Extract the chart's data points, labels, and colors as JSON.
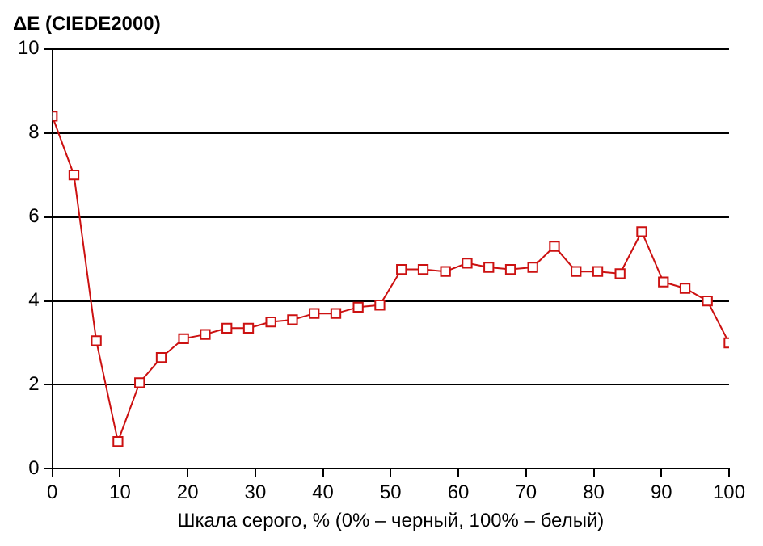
{
  "chart_data": {
    "type": "line",
    "ylabel": "ΔE (CIEDE2000)",
    "xlabel": "Шкала серого, % (0% – черный, 100% – белый)",
    "x": [
      0,
      3.2,
      6.5,
      9.7,
      12.9,
      16.1,
      19.4,
      22.6,
      25.8,
      29,
      32.3,
      35.5,
      38.7,
      41.9,
      45.2,
      48.4,
      51.6,
      54.8,
      58.1,
      61.3,
      64.5,
      67.7,
      71,
      74.2,
      77.4,
      80.6,
      83.9,
      87.1,
      90.3,
      93.5,
      96.8,
      100
    ],
    "series": [
      {
        "color": "#cc1111",
        "values": [
          8.4,
          7.0,
          3.05,
          0.65,
          2.05,
          2.65,
          3.1,
          3.2,
          3.35,
          3.35,
          3.5,
          3.55,
          3.7,
          3.7,
          3.85,
          3.9,
          4.75,
          4.75,
          4.7,
          4.9,
          4.8,
          4.75,
          4.8,
          5.3,
          4.7,
          4.7,
          4.65,
          5.65,
          4.45,
          4.3,
          4.0,
          3.0
        ]
      }
    ],
    "xlim": [
      0,
      100
    ],
    "xticks": [
      0,
      10,
      20,
      30,
      40,
      50,
      60,
      70,
      80,
      90,
      100
    ],
    "ylim": [
      0,
      10
    ],
    "yticks": [
      0,
      2,
      4,
      6,
      8,
      10
    ],
    "grid": "y",
    "legend": false,
    "marker": "square",
    "line_style": "solid"
  }
}
